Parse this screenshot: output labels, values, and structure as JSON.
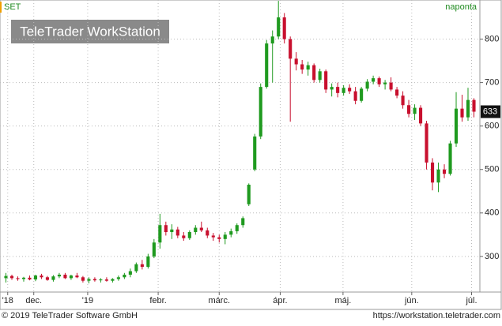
{
  "chart_data": {
    "type": "candlestick",
    "symbol": "SET",
    "period": "naponta",
    "watermark": "TeleTrader WorkStation",
    "footer_left": "© 2019 TeleTrader Software GmbH",
    "footer_right": "https://workstation.teletrader.com",
    "up_color": "#1f9a1f",
    "down_color": "#c8102e",
    "grid": true,
    "ylim": [
      218,
      890
    ],
    "yticks": [
      300,
      400,
      500,
      600,
      700,
      800
    ],
    "xlim": [
      -1,
      80
    ],
    "xticks": [
      {
        "value": 0.3,
        "label": "'18"
      },
      {
        "value": 4.7,
        "label": "dec."
      },
      {
        "value": 13.8,
        "label": "'19"
      },
      {
        "value": 25.7,
        "label": "febr."
      },
      {
        "value": 36,
        "label": "márc."
      },
      {
        "value": 46.3,
        "label": "ápr."
      },
      {
        "value": 56.9,
        "label": "máj."
      },
      {
        "value": 68.5,
        "label": "jún."
      },
      {
        "value": 78.6,
        "label": "júl."
      }
    ],
    "last": 633,
    "open": [
      250,
      255,
      250,
      248,
      251,
      247,
      256,
      252,
      246,
      254,
      258,
      250,
      256,
      252,
      244,
      248,
      245,
      247,
      244,
      248,
      252,
      258,
      266,
      282,
      276,
      300,
      332,
      372,
      356,
      362,
      348,
      342,
      356,
      366,
      360,
      348,
      344,
      340,
      350,
      358,
      372,
      420,
      500,
      576,
      690,
      790,
      806,
      850,
      800,
      755,
      742,
      730,
      740,
      706,
      726,
      684,
      690,
      676,
      688,
      680,
      658,
      686,
      702,
      710,
      696,
      700,
      684,
      670,
      648,
      628,
      642,
      606,
      516,
      470,
      500,
      490,
      560,
      640,
      620,
      660
    ],
    "high": [
      262,
      258,
      254,
      253,
      256,
      258,
      260,
      255,
      257,
      262,
      262,
      258,
      262,
      255,
      252,
      252,
      250,
      252,
      250,
      256,
      262,
      272,
      286,
      292,
      306,
      340,
      398,
      380,
      374,
      368,
      356,
      360,
      372,
      380,
      366,
      354,
      350,
      356,
      364,
      376,
      392,
      468,
      582,
      698,
      798,
      820,
      888,
      860,
      806,
      770,
      752,
      748,
      744,
      732,
      730,
      698,
      700,
      694,
      696,
      690,
      690,
      708,
      716,
      714,
      706,
      712,
      690,
      680,
      660,
      650,
      648,
      612,
      526,
      516,
      512,
      566,
      678,
      672,
      688,
      664
    ],
    "low": [
      240,
      246,
      244,
      242,
      245,
      243,
      248,
      244,
      242,
      250,
      248,
      246,
      250,
      240,
      238,
      242,
      240,
      242,
      240,
      244,
      248,
      252,
      262,
      270,
      272,
      296,
      318,
      348,
      340,
      342,
      336,
      338,
      350,
      356,
      342,
      336,
      332,
      328,
      344,
      352,
      366,
      416,
      496,
      570,
      686,
      700,
      800,
      790,
      610,
      728,
      720,
      716,
      700,
      700,
      676,
      668,
      666,
      670,
      674,
      650,
      654,
      680,
      696,
      690,
      684,
      680,
      664,
      640,
      620,
      614,
      600,
      500,
      452,
      448,
      480,
      486,
      552,
      610,
      612,
      620
    ],
    "close": [
      255,
      250,
      248,
      251,
      247,
      256,
      252,
      246,
      254,
      258,
      250,
      256,
      252,
      244,
      248,
      245,
      247,
      244,
      248,
      252,
      258,
      266,
      282,
      276,
      300,
      332,
      372,
      356,
      362,
      348,
      342,
      356,
      366,
      360,
      348,
      344,
      340,
      350,
      358,
      372,
      388,
      465,
      576,
      690,
      790,
      806,
      850,
      800,
      755,
      742,
      730,
      740,
      706,
      726,
      684,
      690,
      676,
      688,
      680,
      658,
      686,
      702,
      710,
      696,
      700,
      684,
      670,
      648,
      628,
      642,
      606,
      516,
      470,
      500,
      490,
      560,
      640,
      620,
      660,
      633
    ]
  }
}
